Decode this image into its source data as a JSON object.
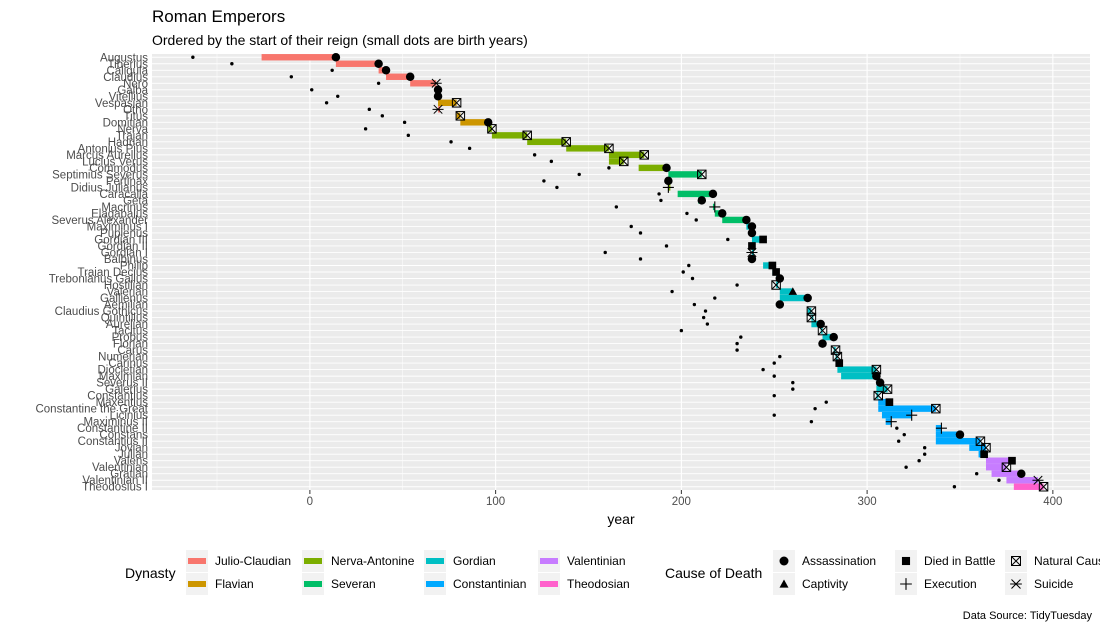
{
  "chart_data": {
    "type": "range-dot",
    "title": "Roman Emperors",
    "subtitle": "Ordered by the start of their reign (small dots are birth years)",
    "xlabel": "year",
    "ylabel": "",
    "caption": "Data Source: TidyTuesday",
    "xlim": [
      -85,
      420
    ],
    "x_ticks": [
      0,
      100,
      200,
      300,
      400
    ],
    "grid": true,
    "legend_position": "bottom",
    "dynasty_legend_title": "Dynasty",
    "death_legend_title": "Cause of Death",
    "dynasties": [
      {
        "name": "Julio-Claudian",
        "color": "#F8766D"
      },
      {
        "name": "Flavian",
        "color": "#CD9600"
      },
      {
        "name": "Nerva-Antonine",
        "color": "#7CAE00"
      },
      {
        "name": "Severan",
        "color": "#00BE67"
      },
      {
        "name": "Gordian",
        "color": "#00BFC4"
      },
      {
        "name": "Constantinian",
        "color": "#00A9FF"
      },
      {
        "name": "Valentinian",
        "color": "#C77CFF"
      },
      {
        "name": "Theodosian",
        "color": "#FF61CC"
      }
    ],
    "causes": [
      {
        "name": "Assassination",
        "shape": "circle"
      },
      {
        "name": "Captivity",
        "shape": "triangle"
      },
      {
        "name": "Died in Battle",
        "shape": "square"
      },
      {
        "name": "Execution",
        "shape": "plus"
      },
      {
        "name": "Natural Causes",
        "shape": "boxcross"
      },
      {
        "name": "Suicide",
        "shape": "asterisk"
      }
    ],
    "emperors": [
      {
        "name": "Augustus",
        "dynasty": "Julio-Claudian",
        "birth": -63,
        "start": -26,
        "end": 14,
        "cause": "Assassination"
      },
      {
        "name": "Tiberius",
        "dynasty": "Julio-Claudian",
        "birth": -42,
        "start": 14,
        "end": 37,
        "cause": "Assassination"
      },
      {
        "name": "Caligula",
        "dynasty": "Julio-Claudian",
        "birth": 12,
        "start": 37,
        "end": 41,
        "cause": "Assassination"
      },
      {
        "name": "Claudius",
        "dynasty": "Julio-Claudian",
        "birth": -10,
        "start": 41,
        "end": 54,
        "cause": "Assassination"
      },
      {
        "name": "Nero",
        "dynasty": "Julio-Claudian",
        "birth": 37,
        "start": 54,
        "end": 68,
        "cause": "Suicide"
      },
      {
        "name": "Galba",
        "dynasty": "Julio-Claudian",
        "birth": 1,
        "start": 68,
        "end": 69,
        "cause": "Assassination"
      },
      {
        "name": "Vitellius",
        "dynasty": "Julio-Claudian",
        "birth": 15,
        "start": 69,
        "end": 69,
        "cause": "Assassination"
      },
      {
        "name": "Vespasian",
        "dynasty": "Flavian",
        "birth": 9,
        "start": 69,
        "end": 79,
        "cause": "Natural Causes"
      },
      {
        "name": "Otho",
        "dynasty": "Julio-Claudian",
        "birth": 32,
        "start": 69,
        "end": 69,
        "cause": "Suicide"
      },
      {
        "name": "Titus",
        "dynasty": "Flavian",
        "birth": 39,
        "start": 79,
        "end": 81,
        "cause": "Natural Causes"
      },
      {
        "name": "Domitian",
        "dynasty": "Flavian",
        "birth": 51,
        "start": 81,
        "end": 96,
        "cause": "Assassination"
      },
      {
        "name": "Nerva",
        "dynasty": "Nerva-Antonine",
        "birth": 30,
        "start": 96,
        "end": 98,
        "cause": "Natural Causes"
      },
      {
        "name": "Trajan",
        "dynasty": "Nerva-Antonine",
        "birth": 53,
        "start": 98,
        "end": 117,
        "cause": "Natural Causes"
      },
      {
        "name": "Hadrian",
        "dynasty": "Nerva-Antonine",
        "birth": 76,
        "start": 117,
        "end": 138,
        "cause": "Natural Causes"
      },
      {
        "name": "Antonius Pius",
        "dynasty": "Nerva-Antonine",
        "birth": 86,
        "start": 138,
        "end": 161,
        "cause": "Natural Causes"
      },
      {
        "name": "Marcus Aurelius",
        "dynasty": "Nerva-Antonine",
        "birth": 121,
        "start": 161,
        "end": 180,
        "cause": "Natural Causes"
      },
      {
        "name": "Lucius Verus",
        "dynasty": "Nerva-Antonine",
        "birth": 130,
        "start": 161,
        "end": 169,
        "cause": "Natural Causes"
      },
      {
        "name": "Commodus",
        "dynasty": "Nerva-Antonine",
        "birth": 161,
        "start": 177,
        "end": 192,
        "cause": "Assassination"
      },
      {
        "name": "Septimius Severus",
        "dynasty": "Severan",
        "birth": 145,
        "start": 193,
        "end": 211,
        "cause": "Natural Causes"
      },
      {
        "name": "Pertinax",
        "dynasty": "Nerva-Antonine",
        "birth": 126,
        "start": 193,
        "end": 193,
        "cause": "Assassination"
      },
      {
        "name": "Didius Julianus",
        "dynasty": "Nerva-Antonine",
        "birth": 133,
        "start": 193,
        "end": 193,
        "cause": "Execution"
      },
      {
        "name": "Caracalla",
        "dynasty": "Severan",
        "birth": 188,
        "start": 198,
        "end": 217,
        "cause": "Assassination"
      },
      {
        "name": "Geta",
        "dynasty": "Severan",
        "birth": 189,
        "start": 209,
        "end": 211,
        "cause": "Assassination"
      },
      {
        "name": "Macrinus",
        "dynasty": "Severan",
        "birth": 165,
        "start": 217,
        "end": 218,
        "cause": "Execution"
      },
      {
        "name": "Elagabalus",
        "dynasty": "Severan",
        "birth": 203,
        "start": 218,
        "end": 222,
        "cause": "Assassination"
      },
      {
        "name": "Severus Alexander",
        "dynasty": "Severan",
        "birth": 208,
        "start": 222,
        "end": 235,
        "cause": "Assassination"
      },
      {
        "name": "Maximinus I",
        "dynasty": "Gordian",
        "birth": 173,
        "start": 235,
        "end": 238,
        "cause": "Assassination"
      },
      {
        "name": "Pupienus",
        "dynasty": "Gordian",
        "birth": 178,
        "start": 238,
        "end": 238,
        "cause": "Assassination"
      },
      {
        "name": "Gordian III",
        "dynasty": "Gordian",
        "birth": 225,
        "start": 238,
        "end": 244,
        "cause": "Died in Battle"
      },
      {
        "name": "Gordian II",
        "dynasty": "Gordian",
        "birth": 192,
        "start": 238,
        "end": 238,
        "cause": "Died in Battle"
      },
      {
        "name": "Gordian I",
        "dynasty": "Gordian",
        "birth": 159,
        "start": 238,
        "end": 238,
        "cause": "Suicide"
      },
      {
        "name": "Balbinus",
        "dynasty": "Gordian",
        "birth": 178,
        "start": 238,
        "end": 238,
        "cause": "Assassination"
      },
      {
        "name": "Philip",
        "dynasty": "Gordian",
        "birth": 204,
        "start": 244,
        "end": 249,
        "cause": "Died in Battle"
      },
      {
        "name": "Traian Decius",
        "dynasty": "Gordian",
        "birth": 201,
        "start": 249,
        "end": 251,
        "cause": "Died in Battle"
      },
      {
        "name": "Trebonianus Gallus",
        "dynasty": "Gordian",
        "birth": 206,
        "start": 251,
        "end": 253,
        "cause": "Assassination"
      },
      {
        "name": "Hostilian",
        "dynasty": "Gordian",
        "birth": 230,
        "start": 251,
        "end": 251,
        "cause": "Natural Causes"
      },
      {
        "name": "Valerian",
        "dynasty": "Gordian",
        "birth": 195,
        "start": 253,
        "end": 260,
        "cause": "Captivity"
      },
      {
        "name": "Gallienus",
        "dynasty": "Gordian",
        "birth": 218,
        "start": 253,
        "end": 268,
        "cause": "Assassination"
      },
      {
        "name": "Aemilian",
        "dynasty": "Gordian",
        "birth": 207,
        "start": 253,
        "end": 253,
        "cause": "Assassination"
      },
      {
        "name": "Claudius Gothicus",
        "dynasty": "Gordian",
        "birth": 213,
        "start": 268,
        "end": 270,
        "cause": "Natural Causes"
      },
      {
        "name": "Quintillus",
        "dynasty": "Gordian",
        "birth": 212,
        "start": 270,
        "end": 270,
        "cause": "Natural Causes"
      },
      {
        "name": "Aurelian",
        "dynasty": "Gordian",
        "birth": 214,
        "start": 270,
        "end": 275,
        "cause": "Assassination"
      },
      {
        "name": "Tacitus",
        "dynasty": "Gordian",
        "birth": 200,
        "start": 275,
        "end": 276,
        "cause": "Natural Causes"
      },
      {
        "name": "Probus",
        "dynasty": "Gordian",
        "birth": 232,
        "start": 276,
        "end": 282,
        "cause": "Assassination"
      },
      {
        "name": "Florian",
        "dynasty": "Gordian",
        "birth": 230,
        "start": 276,
        "end": 276,
        "cause": "Assassination"
      },
      {
        "name": "Carus",
        "dynasty": "Gordian",
        "birth": 230,
        "start": 282,
        "end": 283,
        "cause": "Natural Causes"
      },
      {
        "name": "Numerian",
        "dynasty": "Gordian",
        "birth": 253,
        "start": 283,
        "end": 284,
        "cause": "Natural Causes"
      },
      {
        "name": "Carinus",
        "dynasty": "Gordian",
        "birth": 250,
        "start": 283,
        "end": 285,
        "cause": "Died in Battle"
      },
      {
        "name": "Diocletian",
        "dynasty": "Gordian",
        "birth": 244,
        "start": 284,
        "end": 305,
        "cause": "Natural Causes"
      },
      {
        "name": "Maximian",
        "dynasty": "Gordian",
        "birth": 250,
        "start": 286,
        "end": 305,
        "cause": "Assassination"
      },
      {
        "name": "Severus II",
        "dynasty": "Constantinian",
        "birth": 260,
        "start": 305,
        "end": 307,
        "cause": "Assassination"
      },
      {
        "name": "Galerius",
        "dynasty": "Gordian",
        "birth": 260,
        "start": 305,
        "end": 311,
        "cause": "Natural Causes"
      },
      {
        "name": "Constantius",
        "dynasty": "Gordian",
        "birth": 250,
        "start": 305,
        "end": 306,
        "cause": "Natural Causes"
      },
      {
        "name": "Maxentius",
        "dynasty": "Constantinian",
        "birth": 278,
        "start": 306,
        "end": 312,
        "cause": "Died in Battle"
      },
      {
        "name": "Constantine the Great",
        "dynasty": "Constantinian",
        "birth": 272,
        "start": 306,
        "end": 337,
        "cause": "Natural Causes"
      },
      {
        "name": "Licinius",
        "dynasty": "Constantinian",
        "birth": 250,
        "start": 308,
        "end": 324,
        "cause": "Execution"
      },
      {
        "name": "Maximinus II",
        "dynasty": "Constantinian",
        "birth": 270,
        "start": 310,
        "end": 313,
        "cause": "Execution"
      },
      {
        "name": "Constantine II",
        "dynasty": "Constantinian",
        "birth": 316,
        "start": 337,
        "end": 340,
        "cause": "Execution"
      },
      {
        "name": "Constans",
        "dynasty": "Constantinian",
        "birth": 320,
        "start": 337,
        "end": 350,
        "cause": "Assassination"
      },
      {
        "name": "Constantius II",
        "dynasty": "Constantinian",
        "birth": 317,
        "start": 337,
        "end": 361,
        "cause": "Natural Causes"
      },
      {
        "name": "Jovian",
        "dynasty": "Constantinian",
        "birth": 331,
        "start": 355,
        "end": 364,
        "cause": "Natural Causes"
      },
      {
        "name": "Julian",
        "dynasty": "Constantinian",
        "birth": 331,
        "start": 360,
        "end": 363,
        "cause": "Died in Battle"
      },
      {
        "name": "Valens",
        "dynasty": "Valentinian",
        "birth": 328,
        "start": 364,
        "end": 378,
        "cause": "Died in Battle"
      },
      {
        "name": "Valentinian",
        "dynasty": "Valentinian",
        "birth": 321,
        "start": 364,
        "end": 375,
        "cause": "Natural Causes"
      },
      {
        "name": "Gratian",
        "dynasty": "Valentinian",
        "birth": 359,
        "start": 367,
        "end": 383,
        "cause": "Assassination"
      },
      {
        "name": "Valentinian II",
        "dynasty": "Valentinian",
        "birth": 371,
        "start": 375,
        "end": 392,
        "cause": "Suicide"
      },
      {
        "name": "Theodosius I",
        "dynasty": "Theodosian",
        "birth": 347,
        "start": 379,
        "end": 395,
        "cause": "Natural Causes"
      }
    ]
  }
}
